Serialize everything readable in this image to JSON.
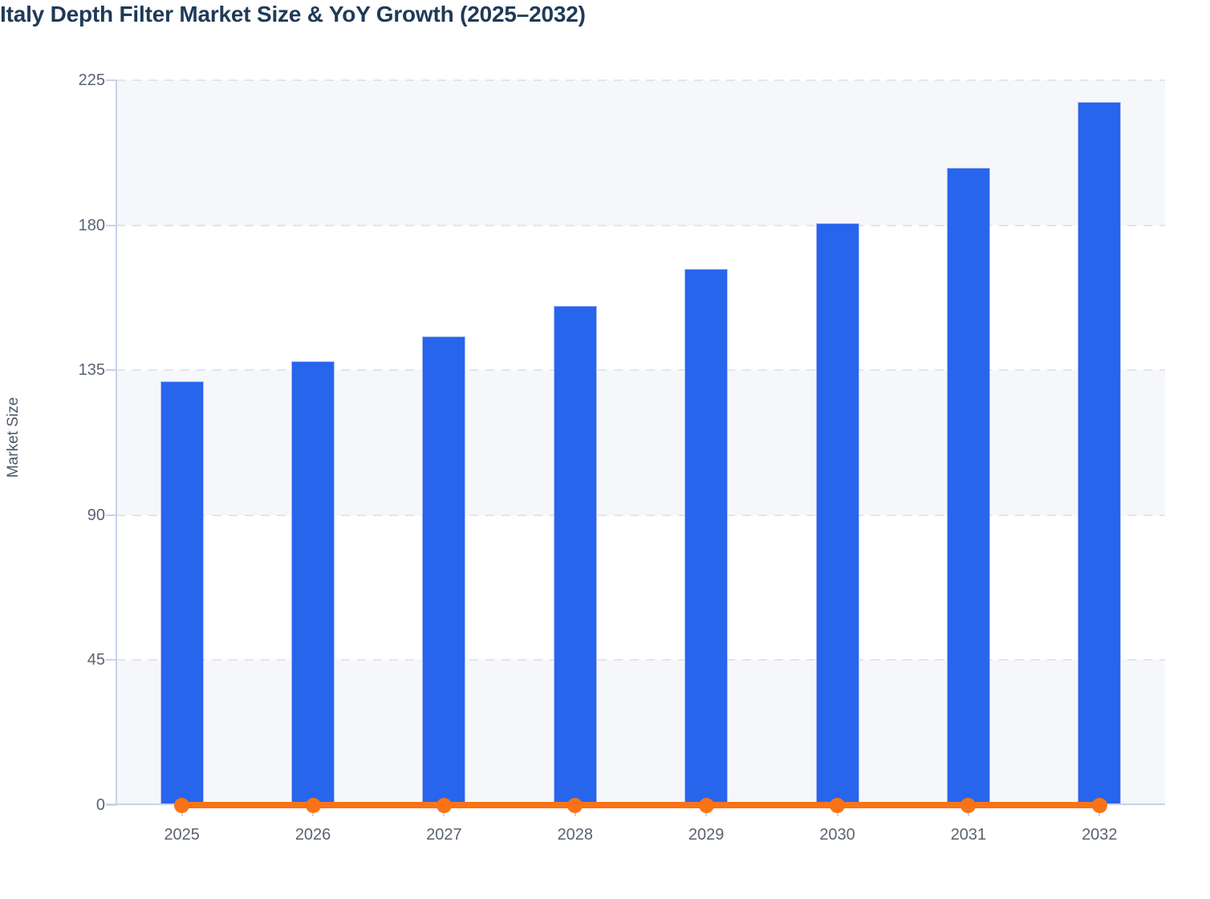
{
  "header": {
    "title": "Italy Depth Filter Market Size & YoY Growth (2025–2032)"
  },
  "chart_data": {
    "type": "bar",
    "title": "Italy Depth Filter Market Size & YoY Growth (2025–2032)",
    "categories": [
      "2025",
      "2026",
      "2027",
      "2028",
      "2029",
      "2030",
      "2031",
      "2032"
    ],
    "series": [
      {
        "name": "Market Size",
        "type": "bar",
        "color": "#2765ec",
        "values": [
          131.5,
          137.9,
          145.4,
          155.0,
          166.5,
          180.7,
          197.9,
          218.3
        ]
      },
      {
        "name": "YoY Growth",
        "type": "line",
        "color": "#f97316",
        "values": [
          0,
          0,
          0,
          0,
          0,
          0,
          0,
          0
        ],
        "layout_note": "renders as a flat line along the zero baseline with a round marker at each year"
      }
    ],
    "xlabel": "",
    "ylabel": "Market Size",
    "ylim": [
      0,
      225
    ],
    "yticks": [
      0,
      45,
      90,
      135,
      180,
      225
    ],
    "grid": "horizontal dashed gridlines at each y tick",
    "plot_bands": "horizontal bands between gridlines alternating light grey and white",
    "legend": "none"
  },
  "colors": {
    "bar": "#2765ec",
    "bar_border": "#aebef2",
    "line": "#f97316",
    "title_text": "#1f3a57",
    "axis_line": "#c9d2e8",
    "tick_text": "#5a6372",
    "ylabel_text": "#4d5a6a",
    "gridline": "#e2e5ea",
    "band_light": "#f6f7fa",
    "band_white": "#ffffff"
  }
}
